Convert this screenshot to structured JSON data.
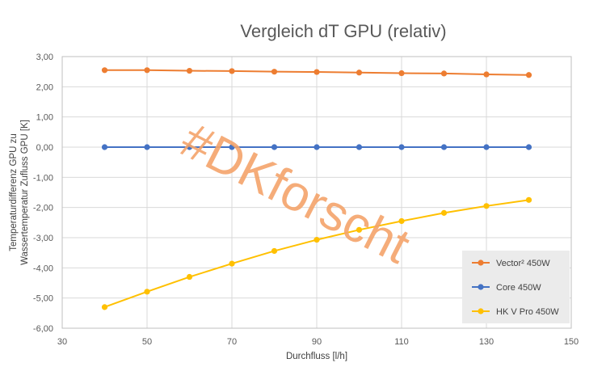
{
  "chart_data": {
    "type": "line",
    "title": "Vergleich dT GPU (relativ)",
    "xlabel": "Durchfluss [l/h]",
    "ylabel": [
      "Temperaturdifferenz GPU zu",
      "Wassertemperatur Zufluss GPU  [K]"
    ],
    "xlim": [
      30,
      150
    ],
    "ylim": [
      -6,
      3
    ],
    "x_ticks": [
      "30",
      "50",
      "70",
      "90",
      "110",
      "130",
      "150"
    ],
    "y_ticks": [
      "-6,00",
      "-5,00",
      "-4,00",
      "-3,00",
      "-2,00",
      "-1,00",
      "0,00",
      "1,00",
      "2,00",
      "3,00"
    ],
    "grid": true,
    "legend_position": "bottom-right",
    "x": [
      40,
      50,
      60,
      70,
      80,
      90,
      100,
      110,
      120,
      130,
      140
    ],
    "series": [
      {
        "name": "Vector² 450W",
        "color": "#ed7d31",
        "values": [
          2.55,
          2.55,
          2.53,
          2.52,
          2.5,
          2.49,
          2.47,
          2.45,
          2.44,
          2.41,
          2.39
        ]
      },
      {
        "name": "Core 450W",
        "color": "#4472c4",
        "values": [
          0,
          0,
          0,
          0,
          0,
          0,
          0,
          0,
          0,
          0,
          0
        ]
      },
      {
        "name": "HK V Pro 450W",
        "color": "#ffc000",
        "values": [
          -5.3,
          -4.79,
          -4.3,
          -3.86,
          -3.44,
          -3.07,
          -2.74,
          -2.45,
          -2.18,
          -1.95,
          -1.75
        ]
      }
    ],
    "annotations": [
      "#DKforscht"
    ]
  }
}
